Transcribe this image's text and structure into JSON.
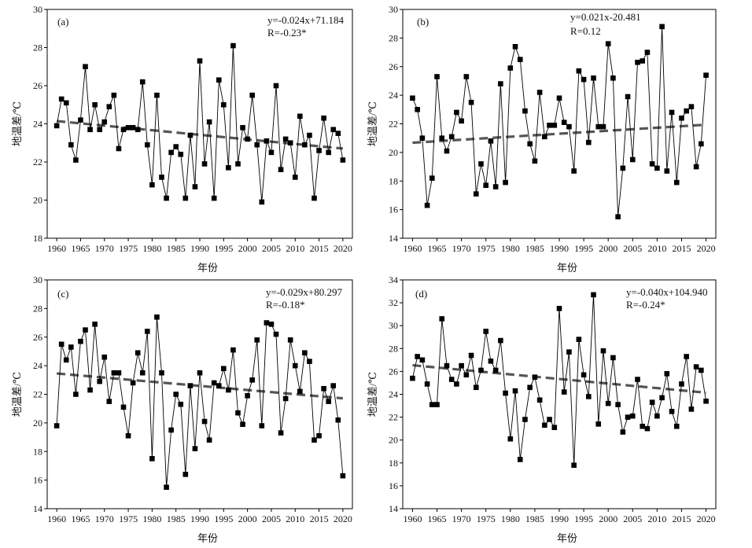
{
  "chart_data": [
    {
      "type": "line",
      "panel_label": "(a)",
      "equation": "y=-0.024x+71.184",
      "r_value": "R=-0.23*",
      "xlabel": "年份",
      "ylabel": "地温差/℃",
      "xlim": [
        1958,
        2022
      ],
      "ylim": [
        18,
        30
      ],
      "xticks": [
        1960,
        1965,
        1970,
        1975,
        1980,
        1985,
        1990,
        1995,
        2000,
        2005,
        2010,
        2015,
        2020
      ],
      "yticks": [
        18,
        20,
        22,
        24,
        26,
        28,
        30
      ],
      "trend": {
        "slope": -0.024,
        "intercept": 71.184
      },
      "series": [
        {
          "x_start": 1960,
          "values": [
            23.9,
            25.3,
            25.1,
            22.9,
            22.1,
            24.2,
            27.0,
            23.7,
            25.0,
            23.7,
            24.1,
            24.9,
            25.5,
            22.7,
            23.7,
            23.8,
            23.8,
            23.7,
            26.2,
            22.9,
            20.8,
            25.5,
            21.2,
            20.1,
            22.5,
            22.8,
            22.4,
            20.1,
            23.4,
            20.7,
            27.3,
            21.9,
            24.1,
            20.1,
            26.3,
            25.0,
            21.7,
            28.1,
            21.9,
            23.8,
            23.2,
            25.5,
            22.9,
            19.9,
            23.1,
            22.5,
            26.0,
            21.6,
            23.2,
            23.0,
            21.2,
            24.4,
            22.9,
            23.4,
            20.1,
            22.6,
            24.3,
            22.5,
            23.7,
            23.5,
            22.1
          ]
        }
      ]
    },
    {
      "type": "line",
      "panel_label": "(b)",
      "equation": "y=0.021x-20.481",
      "r_value": "R=0.12",
      "xlabel": "年份",
      "ylabel": "地温差/℃",
      "xlim": [
        1958,
        2022
      ],
      "ylim": [
        14,
        30
      ],
      "xticks": [
        1960,
        1965,
        1970,
        1975,
        1980,
        1985,
        1990,
        1995,
        2000,
        2005,
        2010,
        2015,
        2020
      ],
      "yticks": [
        14,
        16,
        18,
        20,
        22,
        24,
        26,
        28,
        30
      ],
      "trend": {
        "slope": 0.021,
        "intercept": -20.481
      },
      "series": [
        {
          "x_start": 1960,
          "values": [
            23.8,
            23.0,
            21.0,
            16.3,
            18.2,
            25.3,
            21.0,
            20.1,
            21.1,
            22.8,
            22.2,
            25.3,
            23.5,
            17.1,
            19.2,
            17.7,
            20.8,
            17.6,
            24.8,
            17.9,
            25.9,
            27.4,
            26.5,
            22.9,
            20.6,
            19.4,
            24.2,
            21.1,
            21.9,
            21.9,
            23.8,
            22.1,
            21.8,
            18.7,
            25.7,
            25.1,
            20.7,
            25.2,
            21.8,
            21.8,
            27.6,
            25.2,
            15.5,
            18.9,
            23.9,
            19.5,
            26.3,
            26.4,
            27.0,
            19.2,
            18.9,
            28.8,
            18.7,
            22.8,
            17.9,
            22.4,
            22.9,
            23.2,
            19.0,
            20.6,
            25.4
          ]
        }
      ]
    },
    {
      "type": "line",
      "panel_label": "(c)",
      "equation": "y=-0.029x+80.297",
      "r_value": "R=-0.18*",
      "xlabel": "年份",
      "ylabel": "地温差/℃",
      "xlim": [
        1958,
        2022
      ],
      "ylim": [
        14,
        30
      ],
      "xticks": [
        1960,
        1965,
        1970,
        1975,
        1980,
        1985,
        1990,
        1995,
        2000,
        2005,
        2010,
        2015,
        2020
      ],
      "yticks": [
        14,
        16,
        18,
        20,
        22,
        24,
        26,
        28,
        30
      ],
      "trend": {
        "slope": -0.029,
        "intercept": 80.297
      },
      "series": [
        {
          "x_start": 1960,
          "values": [
            19.8,
            25.5,
            24.4,
            25.3,
            22.0,
            25.7,
            26.5,
            22.3,
            26.9,
            22.9,
            24.6,
            21.5,
            23.5,
            23.5,
            21.1,
            19.1,
            22.8,
            24.9,
            23.5,
            26.4,
            17.5,
            27.4,
            23.5,
            15.5,
            19.5,
            22.0,
            21.3,
            16.4,
            22.6,
            18.2,
            23.5,
            20.1,
            18.8,
            22.8,
            22.6,
            23.8,
            22.3,
            25.1,
            20.7,
            19.9,
            21.9,
            23.0,
            25.8,
            19.8,
            27.0,
            26.9,
            26.2,
            19.3,
            21.7,
            25.8,
            24.0,
            22.2,
            24.9,
            24.3,
            18.8,
            19.1,
            22.4,
            21.5,
            22.6,
            20.2,
            16.3
          ]
        }
      ]
    },
    {
      "type": "line",
      "panel_label": "(d)",
      "equation": "y=-0.040x+104.940",
      "r_value": "R=-0.24*",
      "xlabel": "年份",
      "ylabel": "地温差/℃",
      "xlim": [
        1958,
        2022
      ],
      "ylim": [
        14,
        34
      ],
      "xticks": [
        1960,
        1965,
        1970,
        1975,
        1980,
        1985,
        1990,
        1995,
        2000,
        2005,
        2010,
        2015,
        2020
      ],
      "yticks": [
        14,
        16,
        18,
        20,
        22,
        24,
        26,
        28,
        30,
        32,
        34
      ],
      "trend": {
        "slope": -0.04,
        "intercept": 104.94
      },
      "series": [
        {
          "x_start": 1960,
          "values": [
            25.4,
            27.3,
            27.0,
            24.9,
            23.1,
            23.1,
            30.6,
            26.5,
            25.3,
            24.9,
            26.5,
            25.7,
            27.4,
            24.6,
            26.1,
            29.5,
            26.9,
            26.1,
            28.7,
            24.1,
            20.1,
            24.3,
            18.3,
            21.8,
            24.6,
            25.5,
            23.5,
            21.3,
            21.8,
            21.1,
            31.5,
            24.2,
            27.7,
            17.8,
            28.8,
            25.7,
            23.8,
            32.7,
            21.4,
            27.8,
            23.2,
            27.2,
            23.1,
            20.7,
            22.0,
            22.1,
            25.3,
            21.2,
            21.0,
            23.3,
            22.1,
            23.7,
            25.8,
            22.5,
            21.2,
            24.9,
            27.3,
            22.7,
            26.4,
            26.1,
            23.4
          ]
        }
      ]
    }
  ]
}
